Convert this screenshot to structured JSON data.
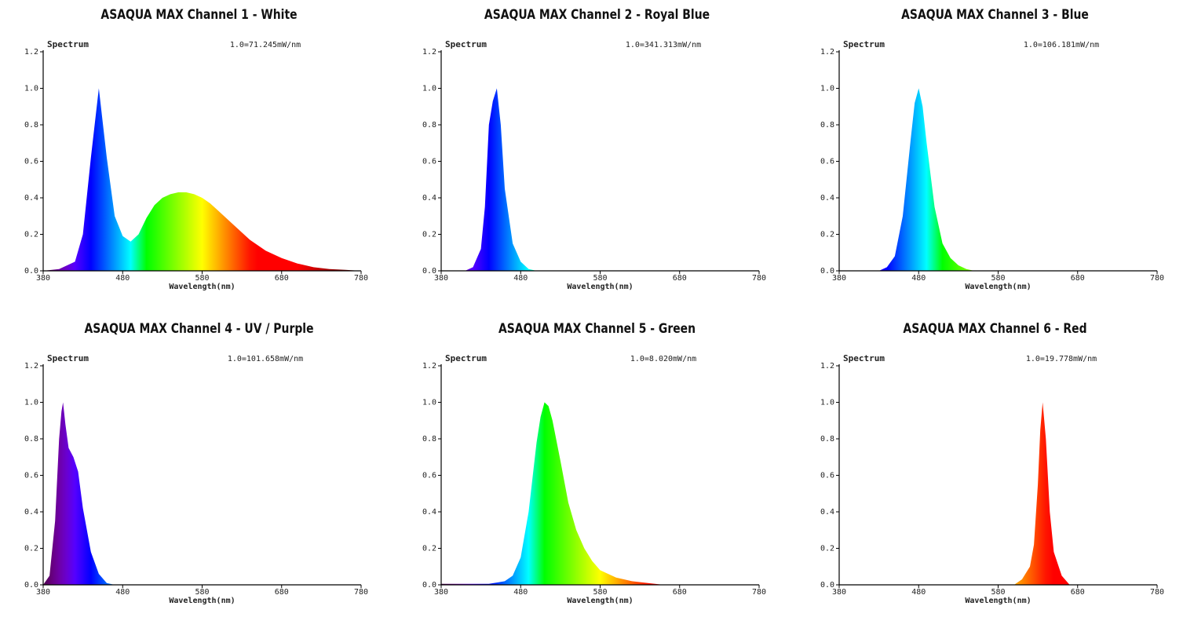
{
  "chart_data": [
    {
      "type": "area",
      "title": "ASAQUA MAX Channel 1 - White",
      "subtitle": "Spectrum",
      "annotation": "1.0=71.245mW/nm",
      "xlabel": "Wavelength(nm)",
      "ylabel": "",
      "xlim": [
        380,
        780
      ],
      "ylim": [
        0,
        1.2
      ],
      "xticks": [
        "380",
        "480",
        "580",
        "680",
        "780"
      ],
      "yticks": [
        "0.0",
        "0.2",
        "0.4",
        "0.6",
        "0.8",
        "1.0",
        "1.2"
      ],
      "grid": false,
      "x": [
        380,
        400,
        420,
        430,
        440,
        450,
        460,
        470,
        480,
        490,
        500,
        510,
        520,
        530,
        540,
        550,
        560,
        570,
        580,
        590,
        600,
        620,
        640,
        660,
        680,
        700,
        720,
        740,
        760,
        780
      ],
      "y": [
        0.0,
        0.01,
        0.05,
        0.2,
        0.62,
        1.0,
        0.62,
        0.3,
        0.19,
        0.16,
        0.2,
        0.29,
        0.36,
        0.4,
        0.42,
        0.43,
        0.43,
        0.42,
        0.4,
        0.37,
        0.33,
        0.25,
        0.17,
        0.11,
        0.07,
        0.04,
        0.02,
        0.01,
        0.005,
        0.0
      ]
    },
    {
      "type": "area",
      "title": "ASAQUA MAX Channel 2 - Royal Blue",
      "subtitle": "Spectrum",
      "annotation": "1.0=341.313mW/nm",
      "xlabel": "Wavelength(nm)",
      "ylabel": "",
      "xlim": [
        380,
        780
      ],
      "ylim": [
        0,
        1.2
      ],
      "xticks": [
        "380",
        "480",
        "580",
        "680",
        "780"
      ],
      "yticks": [
        "0.0",
        "0.2",
        "0.4",
        "0.6",
        "0.8",
        "1.0",
        "1.2"
      ],
      "grid": false,
      "x": [
        380,
        410,
        420,
        430,
        435,
        440,
        445,
        450,
        455,
        460,
        470,
        480,
        490,
        500,
        780
      ],
      "y": [
        0.0,
        0.0,
        0.02,
        0.12,
        0.35,
        0.8,
        0.93,
        1.0,
        0.8,
        0.45,
        0.15,
        0.05,
        0.01,
        0.0,
        0.0
      ]
    },
    {
      "type": "area",
      "title": "ASAQUA MAX Channel 3 - Blue",
      "subtitle": "Spectrum",
      "annotation": "1.0=106.181mW/nm",
      "xlabel": "Wavelength(nm)",
      "ylabel": "",
      "xlim": [
        380,
        780
      ],
      "ylim": [
        0,
        1.2
      ],
      "xticks": [
        "380",
        "480",
        "580",
        "680",
        "780"
      ],
      "yticks": [
        "0.0",
        "0.2",
        "0.4",
        "0.6",
        "0.8",
        "1.0",
        "1.2"
      ],
      "grid": false,
      "x": [
        380,
        430,
        440,
        450,
        460,
        470,
        475,
        480,
        485,
        490,
        500,
        510,
        520,
        530,
        540,
        550,
        780
      ],
      "y": [
        0.0,
        0.0,
        0.02,
        0.08,
        0.3,
        0.72,
        0.92,
        1.0,
        0.9,
        0.7,
        0.35,
        0.15,
        0.07,
        0.03,
        0.01,
        0.0,
        0.0
      ]
    },
    {
      "type": "area",
      "title": "ASAQUA MAX Channel 4 - UV / Purple",
      "subtitle": "Spectrum",
      "annotation": "1.0=101.658mW/nm",
      "xlabel": "Wavelength(nm)",
      "ylabel": "",
      "xlim": [
        380,
        780
      ],
      "ylim": [
        0,
        1.2
      ],
      "xticks": [
        "380",
        "480",
        "580",
        "680",
        "780"
      ],
      "yticks": [
        "0.0",
        "0.2",
        "0.4",
        "0.6",
        "0.8",
        "1.0",
        "1.2"
      ],
      "grid": false,
      "x": [
        380,
        388,
        395,
        400,
        403,
        405,
        408,
        412,
        418,
        424,
        430,
        440,
        450,
        460,
        470,
        780
      ],
      "y": [
        0.0,
        0.05,
        0.35,
        0.8,
        0.95,
        1.0,
        0.88,
        0.75,
        0.7,
        0.62,
        0.42,
        0.18,
        0.06,
        0.01,
        0.0,
        0.0
      ]
    },
    {
      "type": "area",
      "title": "ASAQUA MAX Channel 5 - Green",
      "subtitle": "Spectrum",
      "annotation": "1.0=8.020mW/nm",
      "xlabel": "Wavelength(nm)",
      "ylabel": "",
      "xlim": [
        380,
        780
      ],
      "ylim": [
        0,
        1.2
      ],
      "xticks": [
        "380",
        "480",
        "580",
        "680",
        "780"
      ],
      "yticks": [
        "0.0",
        "0.2",
        "0.4",
        "0.6",
        "0.8",
        "1.0",
        "1.2"
      ],
      "grid": false,
      "x": [
        380,
        440,
        460,
        470,
        480,
        490,
        500,
        505,
        510,
        515,
        520,
        530,
        540,
        550,
        560,
        570,
        580,
        600,
        620,
        640,
        660,
        780
      ],
      "y": [
        0.005,
        0.005,
        0.02,
        0.05,
        0.15,
        0.4,
        0.78,
        0.92,
        1.0,
        0.98,
        0.9,
        0.68,
        0.45,
        0.3,
        0.2,
        0.13,
        0.08,
        0.04,
        0.02,
        0.01,
        0.0,
        0.0
      ]
    },
    {
      "type": "area",
      "title": "ASAQUA MAX Channel 6 - Red",
      "subtitle": "Spectrum",
      "annotation": "1.0=19.778mW/nm",
      "xlabel": "Wavelength(nm)",
      "ylabel": "",
      "xlim": [
        380,
        780
      ],
      "ylim": [
        0,
        1.2
      ],
      "xticks": [
        "380",
        "480",
        "580",
        "680",
        "780"
      ],
      "yticks": [
        "0.0",
        "0.2",
        "0.4",
        "0.6",
        "0.8",
        "1.0",
        "1.2"
      ],
      "grid": false,
      "x": [
        380,
        600,
        610,
        620,
        625,
        630,
        633,
        636,
        640,
        645,
        650,
        660,
        670,
        780
      ],
      "y": [
        0.0,
        0.0,
        0.03,
        0.1,
        0.22,
        0.55,
        0.85,
        1.0,
        0.8,
        0.4,
        0.18,
        0.05,
        0.0,
        0.0
      ]
    }
  ]
}
